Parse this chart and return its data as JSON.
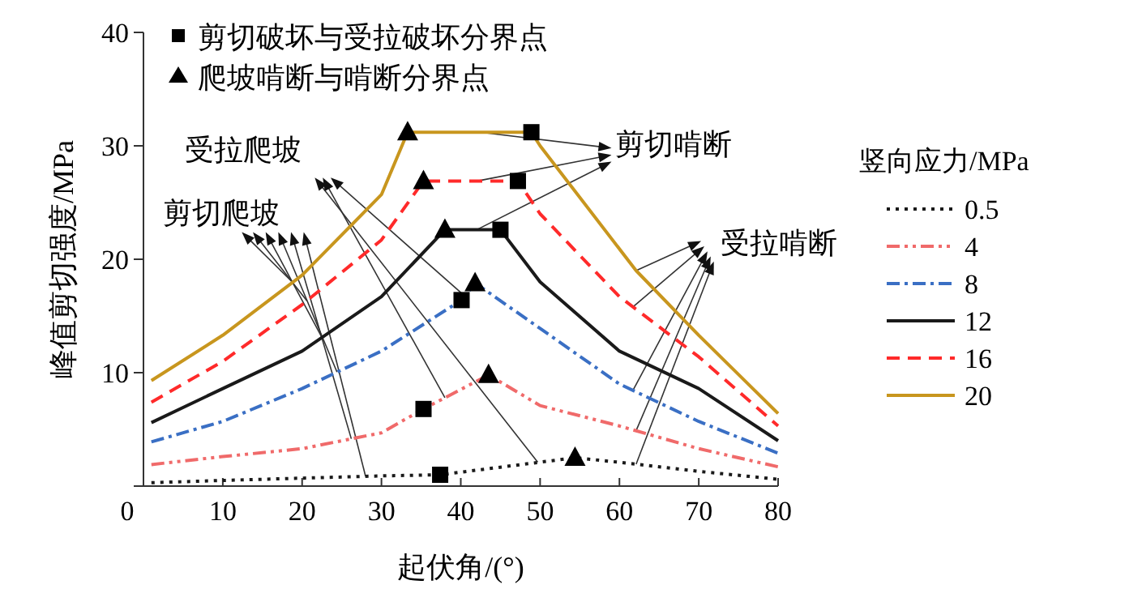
{
  "chart_data": {
    "type": "line",
    "xlabel": "起伏角/(°)",
    "ylabel": "峰值剪切强度/MPa",
    "legend_title": "竖向应力/MPa",
    "legend": "right",
    "xlim": [
      0,
      80
    ],
    "ylim": [
      0,
      40
    ],
    "xticks": [
      0,
      10,
      20,
      30,
      40,
      50,
      60,
      70,
      80
    ],
    "yticks": [
      {
        "value": 0,
        "label": null
      },
      10,
      20,
      30,
      40
    ],
    "annotations": [
      {
        "text": "剪切爬坡",
        "x": 28,
        "y": 0.86
      },
      {
        "text": "受拉爬坡",
        "x": 49.7,
        "y": 2.1
      },
      {
        "text": "剪切啃断",
        "x": 42.5,
        "y": 31.2
      },
      {
        "text": "受拉啃断",
        "x": 62.1,
        "y": 19.0
      }
    ],
    "series": [
      {
        "name": "0.5",
        "color": "#1a1a1a",
        "line_style": "dotted",
        "x": [
          1,
          10,
          20,
          30,
          37.4,
          54.4,
          60,
          70,
          80
        ],
        "values": [
          0.3,
          0.5,
          0.7,
          0.9,
          1.0,
          2.5,
          2.1,
          1.3,
          0.6
        ]
      },
      {
        "name": "4",
        "color": "#f06a6a",
        "line_style": "dashdotdot",
        "x": [
          1,
          10,
          20,
          30,
          35.3,
          43.5,
          50,
          60,
          70,
          80
        ],
        "values": [
          1.9,
          2.6,
          3.3,
          4.7,
          6.8,
          9.8,
          7.1,
          5.3,
          3.3,
          1.7
        ]
      },
      {
        "name": "8",
        "color": "#3a6fc4",
        "line_style": "dashdot",
        "x": [
          1,
          10,
          20,
          30,
          40.1,
          41.8,
          50,
          60,
          70,
          80
        ],
        "values": [
          3.9,
          5.7,
          8.6,
          11.9,
          16.4,
          17.9,
          13.9,
          9.0,
          5.7,
          2.9
        ]
      },
      {
        "name": "12",
        "color": "#1a1a1a",
        "line_style": "solid",
        "x": [
          1,
          10,
          20,
          30,
          38,
          45,
          50,
          60,
          70,
          80
        ],
        "values": [
          5.6,
          8.6,
          11.9,
          16.7,
          22.6,
          22.6,
          18.0,
          11.9,
          8.6,
          4.0
        ]
      },
      {
        "name": "16",
        "color": "#ff2a2a",
        "line_style": "dashed",
        "x": [
          1,
          10,
          20,
          30,
          35.3,
          47.2,
          50,
          60,
          70,
          80
        ],
        "values": [
          7.4,
          11.0,
          16.0,
          21.7,
          26.9,
          26.9,
          24.0,
          16.7,
          11.4,
          5.3
        ]
      },
      {
        "name": "20",
        "color": "#c8961e",
        "line_style": "solid",
        "x": [
          1,
          10,
          20,
          30,
          33.3,
          48.9,
          50,
          62.1,
          70,
          80
        ],
        "values": [
          9.3,
          13.3,
          18.6,
          25.7,
          31.2,
          31.2,
          30.0,
          19.0,
          13.3,
          6.4
        ]
      },
      {
        "name": "剪切破坏与受拉破坏分界点",
        "type": "scatter",
        "marker": "square",
        "color": "#000000",
        "x": [
          37.4,
          35.3,
          40.1,
          45,
          47.2,
          48.9
        ],
        "values": [
          1.0,
          6.8,
          16.4,
          22.6,
          26.9,
          31.2
        ]
      },
      {
        "name": "爬坡啃断与啃断分界点",
        "type": "scatter",
        "marker": "triangle",
        "color": "#000000",
        "x": [
          54.4,
          43.5,
          41.8,
          38,
          35.3,
          33.3
        ],
        "values": [
          2.5,
          9.8,
          17.9,
          22.6,
          26.9,
          31.2
        ]
      }
    ]
  }
}
